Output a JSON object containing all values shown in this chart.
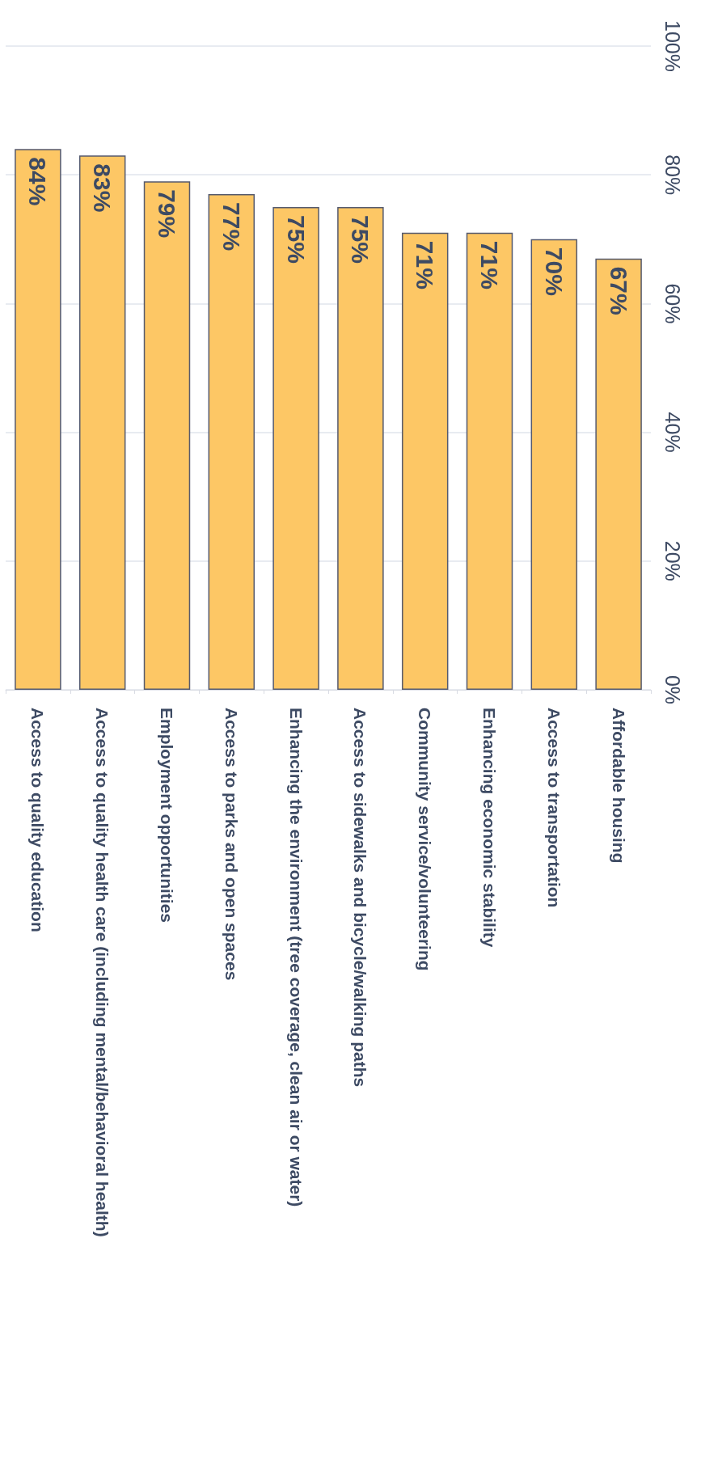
{
  "chart_data": {
    "type": "bar",
    "categories": [
      "Access to quality education",
      "Access to quality health care (including mental/behavioral health)",
      "Employment opportunities",
      "Access to parks and open spaces",
      "Enhancing the environment (tree coverage, clean air or water)",
      "Access to sidewalks and bicycle/walking paths",
      "Community service/volunteering",
      "Enhancing economic stability",
      "Access to transportation",
      "Affordable housing"
    ],
    "values": [
      84,
      83,
      79,
      77,
      75,
      75,
      71,
      71,
      70,
      67
    ],
    "value_labels": [
      "84%",
      "83%",
      "79%",
      "77%",
      "75%",
      "75%",
      "71%",
      "71%",
      "70%",
      "67%"
    ],
    "color": "#fdc765",
    "ylim": [
      0,
      100
    ],
    "yticks": [
      {
        "value": 0,
        "label": "0%"
      },
      {
        "value": 20,
        "label": "20%"
      },
      {
        "value": 40,
        "label": "40%"
      },
      {
        "value": 60,
        "label": "60%"
      },
      {
        "value": 80,
        "label": "80%"
      },
      {
        "value": 100,
        "label": "100%"
      }
    ],
    "grid": "y"
  }
}
